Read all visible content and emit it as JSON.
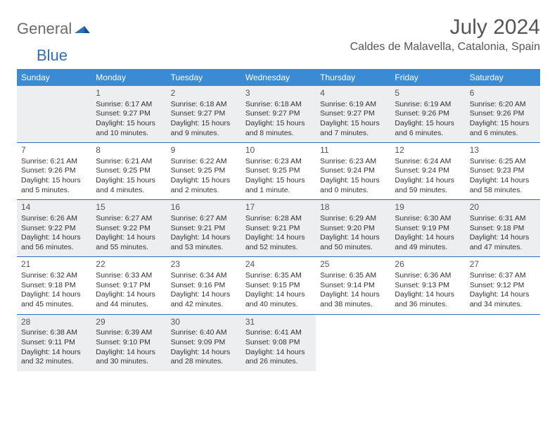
{
  "logo": {
    "word1": "General",
    "word2": "Blue"
  },
  "title": "July 2024",
  "location": "Caldes de Malavella, Catalonia, Spain",
  "colors": {
    "header_bg": "#3b8bd4",
    "header_text": "#ffffff",
    "rule": "#2d6fb5",
    "shade": "#eceeef",
    "text": "#333333",
    "title_text": "#555555"
  },
  "day_headers": [
    "Sunday",
    "Monday",
    "Tuesday",
    "Wednesday",
    "Thursday",
    "Friday",
    "Saturday"
  ],
  "weeks": [
    [
      {
        "blank": true,
        "shade": true
      },
      {
        "n": "1",
        "sunrise": "6:17 AM",
        "sunset": "9:27 PM",
        "daylight": "15 hours and 10 minutes.",
        "shade": true
      },
      {
        "n": "2",
        "sunrise": "6:18 AM",
        "sunset": "9:27 PM",
        "daylight": "15 hours and 9 minutes.",
        "shade": true
      },
      {
        "n": "3",
        "sunrise": "6:18 AM",
        "sunset": "9:27 PM",
        "daylight": "15 hours and 8 minutes.",
        "shade": true
      },
      {
        "n": "4",
        "sunrise": "6:19 AM",
        "sunset": "9:27 PM",
        "daylight": "15 hours and 7 minutes.",
        "shade": true
      },
      {
        "n": "5",
        "sunrise": "6:19 AM",
        "sunset": "9:26 PM",
        "daylight": "15 hours and 6 minutes.",
        "shade": true
      },
      {
        "n": "6",
        "sunrise": "6:20 AM",
        "sunset": "9:26 PM",
        "daylight": "15 hours and 6 minutes.",
        "shade": true
      }
    ],
    [
      {
        "n": "7",
        "sunrise": "6:21 AM",
        "sunset": "9:26 PM",
        "daylight": "15 hours and 5 minutes."
      },
      {
        "n": "8",
        "sunrise": "6:21 AM",
        "sunset": "9:25 PM",
        "daylight": "15 hours and 4 minutes."
      },
      {
        "n": "9",
        "sunrise": "6:22 AM",
        "sunset": "9:25 PM",
        "daylight": "15 hours and 2 minutes."
      },
      {
        "n": "10",
        "sunrise": "6:23 AM",
        "sunset": "9:25 PM",
        "daylight": "15 hours and 1 minute."
      },
      {
        "n": "11",
        "sunrise": "6:23 AM",
        "sunset": "9:24 PM",
        "daylight": "15 hours and 0 minutes."
      },
      {
        "n": "12",
        "sunrise": "6:24 AM",
        "sunset": "9:24 PM",
        "daylight": "14 hours and 59 minutes."
      },
      {
        "n": "13",
        "sunrise": "6:25 AM",
        "sunset": "9:23 PM",
        "daylight": "14 hours and 58 minutes."
      }
    ],
    [
      {
        "n": "14",
        "sunrise": "6:26 AM",
        "sunset": "9:22 PM",
        "daylight": "14 hours and 56 minutes.",
        "shade": true
      },
      {
        "n": "15",
        "sunrise": "6:27 AM",
        "sunset": "9:22 PM",
        "daylight": "14 hours and 55 minutes.",
        "shade": true
      },
      {
        "n": "16",
        "sunrise": "6:27 AM",
        "sunset": "9:21 PM",
        "daylight": "14 hours and 53 minutes.",
        "shade": true
      },
      {
        "n": "17",
        "sunrise": "6:28 AM",
        "sunset": "9:21 PM",
        "daylight": "14 hours and 52 minutes.",
        "shade": true
      },
      {
        "n": "18",
        "sunrise": "6:29 AM",
        "sunset": "9:20 PM",
        "daylight": "14 hours and 50 minutes.",
        "shade": true
      },
      {
        "n": "19",
        "sunrise": "6:30 AM",
        "sunset": "9:19 PM",
        "daylight": "14 hours and 49 minutes.",
        "shade": true
      },
      {
        "n": "20",
        "sunrise": "6:31 AM",
        "sunset": "9:18 PM",
        "daylight": "14 hours and 47 minutes.",
        "shade": true
      }
    ],
    [
      {
        "n": "21",
        "sunrise": "6:32 AM",
        "sunset": "9:18 PM",
        "daylight": "14 hours and 45 minutes."
      },
      {
        "n": "22",
        "sunrise": "6:33 AM",
        "sunset": "9:17 PM",
        "daylight": "14 hours and 44 minutes."
      },
      {
        "n": "23",
        "sunrise": "6:34 AM",
        "sunset": "9:16 PM",
        "daylight": "14 hours and 42 minutes."
      },
      {
        "n": "24",
        "sunrise": "6:35 AM",
        "sunset": "9:15 PM",
        "daylight": "14 hours and 40 minutes."
      },
      {
        "n": "25",
        "sunrise": "6:35 AM",
        "sunset": "9:14 PM",
        "daylight": "14 hours and 38 minutes."
      },
      {
        "n": "26",
        "sunrise": "6:36 AM",
        "sunset": "9:13 PM",
        "daylight": "14 hours and 36 minutes."
      },
      {
        "n": "27",
        "sunrise": "6:37 AM",
        "sunset": "9:12 PM",
        "daylight": "14 hours and 34 minutes."
      }
    ],
    [
      {
        "n": "28",
        "sunrise": "6:38 AM",
        "sunset": "9:11 PM",
        "daylight": "14 hours and 32 minutes.",
        "shade": true
      },
      {
        "n": "29",
        "sunrise": "6:39 AM",
        "sunset": "9:10 PM",
        "daylight": "14 hours and 30 minutes.",
        "shade": true
      },
      {
        "n": "30",
        "sunrise": "6:40 AM",
        "sunset": "9:09 PM",
        "daylight": "14 hours and 28 minutes.",
        "shade": true
      },
      {
        "n": "31",
        "sunrise": "6:41 AM",
        "sunset": "9:08 PM",
        "daylight": "14 hours and 26 minutes.",
        "shade": true
      },
      {
        "blank": true
      },
      {
        "blank": true
      },
      {
        "blank": true
      }
    ]
  ],
  "labels": {
    "sunrise": "Sunrise:",
    "sunset": "Sunset:",
    "daylight": "Daylight:"
  }
}
